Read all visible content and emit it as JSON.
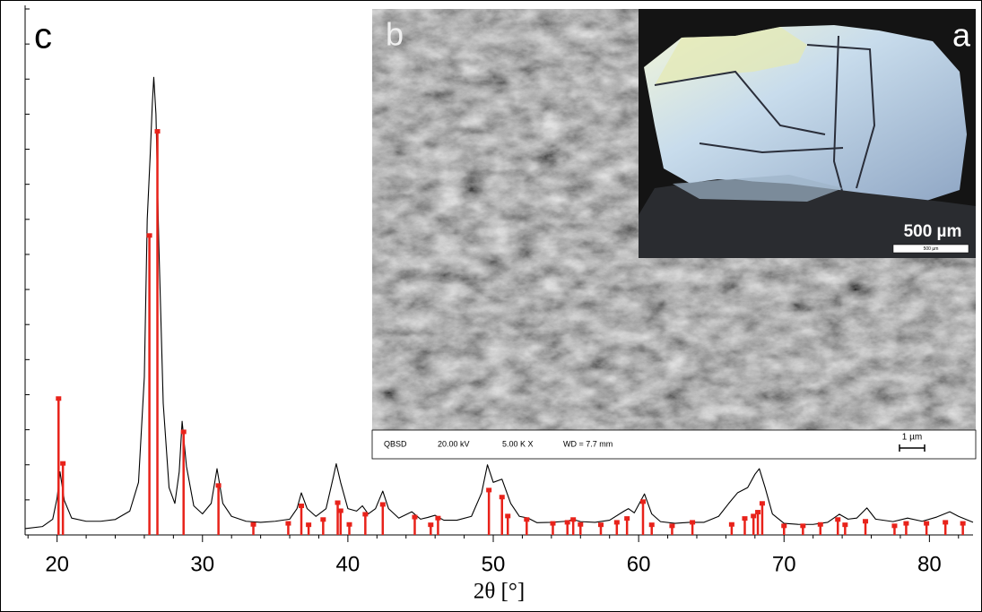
{
  "chart_data": {
    "type": "line",
    "xlabel": "2θ [°]",
    "panel_label": "c",
    "xlim": [
      17.8,
      83.0
    ],
    "ylim": [
      0,
      150
    ],
    "xticks": [
      20,
      30,
      40,
      50,
      60,
      70,
      80
    ],
    "xminorticks": [
      18,
      22,
      24,
      26,
      28,
      32,
      34,
      36,
      38,
      42,
      44,
      46,
      48,
      52,
      54,
      56,
      58,
      62,
      64,
      66,
      68,
      72,
      74,
      76,
      78,
      82
    ],
    "yticks": [
      0,
      10,
      20,
      30,
      40,
      50,
      60,
      70,
      80,
      90,
      100,
      110,
      120,
      130,
      140,
      150
    ],
    "series": [
      {
        "type": "line",
        "color": "#000000",
        "x": [
          17.8,
          19.0,
          19.7,
          20.0,
          20.2,
          20.5,
          21.0,
          22,
          23,
          24,
          25,
          25.6,
          26.0,
          26.2,
          26.4,
          26.55,
          26.65,
          26.8,
          27.0,
          27.3,
          27.7,
          28.1,
          28.4,
          28.6,
          28.9,
          29.4,
          30.0,
          30.6,
          31.0,
          31.4,
          32,
          33,
          34,
          35,
          36,
          36.5,
          36.8,
          37.2,
          37.8,
          38.5,
          39.0,
          39.2,
          39.5,
          40.0,
          40.6,
          41.0,
          41.4,
          41.9,
          42.4,
          42.8,
          43.5,
          44.4,
          45.0,
          45.5,
          46.0,
          46.6,
          47.5,
          48.5,
          49.2,
          49.6,
          50.0,
          50.6,
          51.2,
          51.8,
          52.4,
          53,
          54,
          55,
          55.5,
          56,
          57,
          58,
          59.0,
          59.3,
          59.7,
          60.4,
          60.9,
          61.5,
          62.5,
          63.5,
          64.5,
          65.5,
          66.2,
          66.8,
          67.5,
          68.0,
          68.3,
          68.7,
          69.2,
          70,
          71,
          72,
          73,
          73.8,
          74.4,
          75.0,
          75.7,
          76.3,
          77.5,
          78.5,
          79.5,
          80.5,
          81.4,
          82.0,
          83.0
        ],
        "values": [
          1.8,
          2.4,
          4.5,
          10.5,
          18,
          9.8,
          4.8,
          3.9,
          3.9,
          4.4,
          6.8,
          15,
          45,
          90,
          108,
          123,
          130.5,
          120,
          82.5,
          37.5,
          13.5,
          9,
          18,
          32.4,
          19.5,
          8.3,
          6,
          9,
          18.9,
          9,
          5.3,
          3.9,
          3.6,
          3.9,
          4.5,
          7.5,
          12,
          7.5,
          5.3,
          7.5,
          16.5,
          20.3,
          15,
          7.5,
          6.8,
          8.3,
          6,
          7.5,
          12.5,
          7.5,
          4.8,
          6.6,
          4.5,
          5,
          5.6,
          4.2,
          4.2,
          5.3,
          12,
          20,
          15,
          15.9,
          9,
          5.3,
          4.8,
          3.5,
          3.6,
          3.9,
          4.4,
          3.8,
          3.6,
          4.2,
          6.8,
          7.5,
          6.3,
          11.7,
          6,
          3.8,
          3.3,
          3.6,
          3.6,
          5.3,
          9,
          12,
          13.5,
          17.3,
          18.9,
          13.5,
          6,
          3.3,
          3,
          3,
          3.6,
          5.9,
          4.5,
          4.8,
          7.7,
          4.5,
          3.8,
          4.8,
          3.9,
          5.1,
          6.6,
          5.3,
          3.6
        ]
      },
      {
        "type": "stem",
        "color": "#e8221a",
        "x": [
          20.1,
          20.4,
          26.35,
          26.9,
          28.7,
          31.1,
          33.5,
          35.9,
          36.8,
          37.3,
          38.3,
          39.3,
          39.5,
          40.1,
          41.2,
          42.4,
          44.6,
          45.7,
          46.2,
          49.7,
          50.6,
          51.0,
          52.3,
          54.1,
          55.1,
          55.5,
          56.0,
          57.4,
          58.5,
          59.2,
          60.3,
          60.9,
          62.3,
          63.7,
          66.4,
          67.3,
          67.9,
          68.2,
          68.5,
          70.0,
          71.3,
          72.5,
          73.7,
          74.2,
          75.6,
          77.6,
          78.4,
          79.8,
          81.1,
          82.3
        ],
        "values": [
          38.9,
          20.4,
          85.4,
          115.1,
          29.4,
          14.1,
          3,
          3.3,
          8.3,
          2.9,
          4.4,
          9.2,
          6.9,
          3,
          5.9,
          8.7,
          5.1,
          2.9,
          4.8,
          12.8,
          10.8,
          5.4,
          4.4,
          3.3,
          3.6,
          4.4,
          3,
          2.9,
          3.6,
          4.7,
          9.5,
          2.9,
          2.6,
          3.6,
          3,
          4.7,
          5.4,
          6.5,
          9,
          2.6,
          2.6,
          3,
          4.4,
          2.9,
          3.9,
          2.6,
          3.3,
          3.3,
          3.6,
          3.3
        ]
      }
    ]
  },
  "insets": {
    "b": {
      "label": "b",
      "info": [
        "QBSD",
        "20.00 kV",
        "5.00 K X",
        "WD = 7.7 mm"
      ],
      "scale": "1 µm"
    },
    "a": {
      "label": "a",
      "scale": "500 µm",
      "scale_small": "500 µm"
    }
  }
}
